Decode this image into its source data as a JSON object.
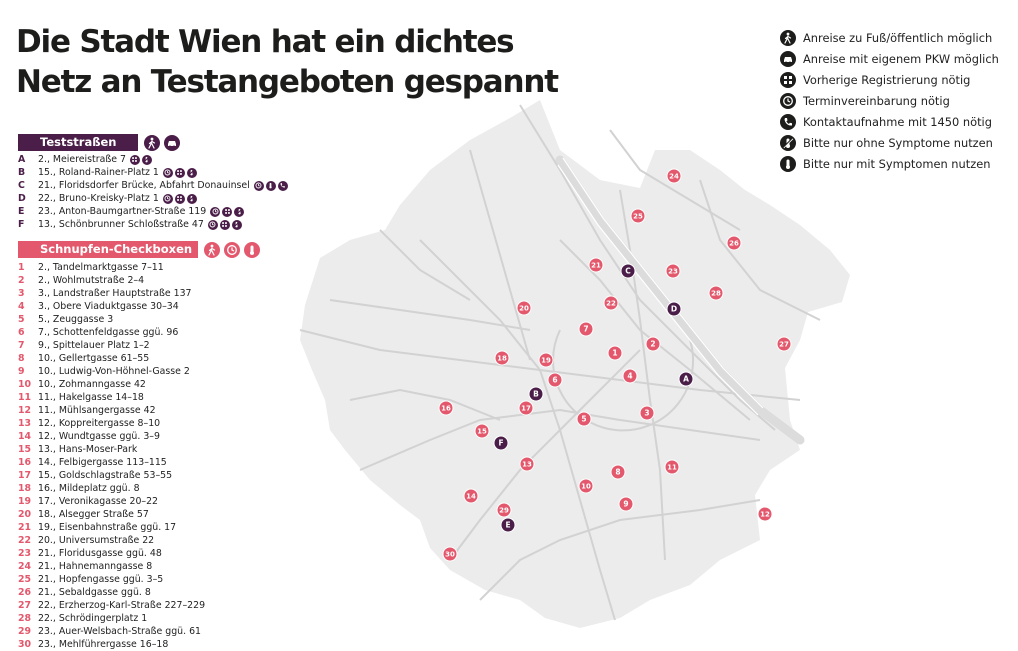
{
  "title": {
    "line1": "Die Stadt Wien hat ein dichtes",
    "line2": "Netz an Testangeboten gespannt"
  },
  "colors": {
    "dark": "#4a1e48",
    "red": "#e3586c",
    "city_fill": "#ececec",
    "roads": "#cfcfcf",
    "icon_legend": "#1d1d1b"
  },
  "legend": [
    {
      "icon": "walk-icon",
      "text": "Anreise zu Fuß/öffentlich möglich"
    },
    {
      "icon": "car-icon",
      "text": "Anreise mit eigenem PKW möglich"
    },
    {
      "icon": "registration-icon",
      "text": "Vorherige Registrierung nötig"
    },
    {
      "icon": "clock-icon",
      "text": "Terminvereinbarung nötig"
    },
    {
      "icon": "phone-icon",
      "text": "Kontaktaufnahme mit 1450 nötig"
    },
    {
      "icon": "no-symptoms-icon",
      "text": "Bitte nur ohne Symptome nutzen"
    },
    {
      "icon": "thermometer-icon",
      "text": "Bitte nur mit Symptomen nutzen"
    }
  ],
  "teststrassen": {
    "heading": "Teststraßen",
    "heading_icons": [
      "walk-icon",
      "car-icon"
    ],
    "items": [
      {
        "key": "A",
        "text": "2., Meiereistraße 7",
        "icons": [
          "registration-icon",
          "no-symptoms-icon"
        ]
      },
      {
        "key": "B",
        "text": "15., Roland-Rainer-Platz 1",
        "icons": [
          "clock-icon",
          "registration-icon",
          "no-symptoms-icon"
        ]
      },
      {
        "key": "C",
        "text": "21., Floridsdorfer Brücke, Abfahrt Donauinsel",
        "icons": [
          "clock-icon",
          "thermometer-icon",
          "phone-icon"
        ]
      },
      {
        "key": "D",
        "text": "22., Bruno-Kreisky-Platz 1",
        "icons": [
          "clock-icon",
          "registration-icon",
          "no-symptoms-icon"
        ]
      },
      {
        "key": "E",
        "text": "23., Anton-Baumgartner-Straße 119",
        "icons": [
          "clock-icon",
          "registration-icon",
          "no-symptoms-icon"
        ]
      },
      {
        "key": "F",
        "text": "13., Schönbrunner Schloßstraße 47",
        "icons": [
          "clock-icon",
          "registration-icon",
          "no-symptoms-icon"
        ]
      }
    ]
  },
  "checkboxen": {
    "heading": "Schnupfen-Checkboxen",
    "heading_icons": [
      "walk-icon",
      "clock-icon",
      "thermometer-icon"
    ],
    "items": [
      {
        "key": "1",
        "text": "2., Tandelmarktgasse 7–11"
      },
      {
        "key": "2",
        "text": "2., Wohlmutstraße 2–4"
      },
      {
        "key": "3",
        "text": "3., Landstraßer Hauptstraße 137"
      },
      {
        "key": "4",
        "text": "3., Obere Viaduktgasse 30–34"
      },
      {
        "key": "5",
        "text": "5., Zeuggasse 3"
      },
      {
        "key": "6",
        "text": "7., Schottenfeldgasse ggü. 96"
      },
      {
        "key": "7",
        "text": "9., Spittelauer Platz 1–2"
      },
      {
        "key": "8",
        "text": "10., Gellertgasse 61–55"
      },
      {
        "key": "9",
        "text": "10., Ludwig-Von-Höhnel-Gasse 2"
      },
      {
        "key": "10",
        "text": "10., Zohmanngasse 42"
      },
      {
        "key": "11",
        "text": "11., Hakelgasse 14–18"
      },
      {
        "key": "12",
        "text": "11., Mühlsangergasse 42"
      },
      {
        "key": "13",
        "text": "12., Koppreitergasse 8–10"
      },
      {
        "key": "14",
        "text": "12., Wundtgasse ggü. 3–9"
      },
      {
        "key": "15",
        "text": "13., Hans-Moser-Park"
      },
      {
        "key": "16",
        "text": "14., Felbigergasse 113–115"
      },
      {
        "key": "17",
        "text": "15., Goldschlagstraße 53–55"
      },
      {
        "key": "18",
        "text": "16., Mildeplatz ggü. 8"
      },
      {
        "key": "19",
        "text": "17., Veronikagasse 20–22"
      },
      {
        "key": "20",
        "text": "18., Alsegger Straße 57"
      },
      {
        "key": "21",
        "text": "19., Eisenbahnstraße ggü. 17"
      },
      {
        "key": "22",
        "text": "20., Universumstraße 22"
      },
      {
        "key": "23",
        "text": "21., Floridusgasse ggü. 48"
      },
      {
        "key": "24",
        "text": "21., Hahnemanngasse 8"
      },
      {
        "key": "25",
        "text": "21., Hopfengasse ggü. 3–5"
      },
      {
        "key": "26",
        "text": "21., Sebaldgasse ggü. 8"
      },
      {
        "key": "27",
        "text": "22., Erzherzog-Karl-Straße 227–229"
      },
      {
        "key": "28",
        "text": "22., Schrödingerplatz 1"
      },
      {
        "key": "29",
        "text": "23., Auer-Welsbach-Straße ggü. 61"
      },
      {
        "key": "30",
        "text": "23., Mehlführergasse 16–18"
      }
    ]
  },
  "map_markers": {
    "teststrassen": [
      "A",
      "B",
      "C",
      "D",
      "E",
      "F"
    ],
    "checkboxen": [
      "1",
      "2",
      "3",
      "4",
      "5",
      "6",
      "7",
      "8",
      "9",
      "10",
      "11",
      "12",
      "13",
      "14",
      "15",
      "16",
      "17",
      "18",
      "19",
      "20",
      "21",
      "22",
      "23",
      "24",
      "25",
      "26",
      "27",
      "28",
      "29",
      "30"
    ]
  }
}
